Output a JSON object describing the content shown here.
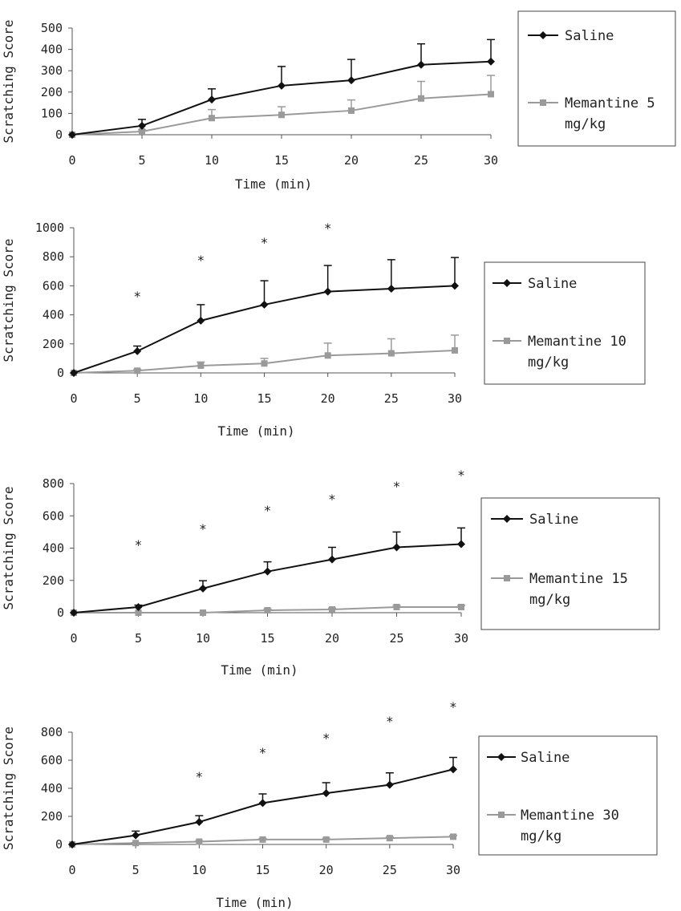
{
  "chart_data": [
    {
      "type": "line",
      "xlabel": "Time (min)",
      "ylabel": "Scratching Score",
      "x": [
        0,
        5,
        10,
        15,
        20,
        25,
        30
      ],
      "xticks": [
        "0",
        "5",
        "10",
        "15",
        "20",
        "25",
        "30"
      ],
      "ylim": [
        0,
        500
      ],
      "yticks": [
        "0",
        "100",
        "200",
        "300",
        "400",
        "500"
      ],
      "legend_position": "right",
      "series": [
        {
          "name": "Saline",
          "marker": "diamond",
          "color": "#111111",
          "values": [
            0,
            42,
            165,
            230,
            255,
            328,
            343
          ],
          "error": [
            0,
            30,
            50,
            90,
            98,
            98,
            103
          ]
        },
        {
          "name": "Memantine 5 mg/kg",
          "marker": "square",
          "color": "#9a9a9a",
          "values": [
            0,
            15,
            78,
            93,
            113,
            170,
            190
          ],
          "error": [
            0,
            8,
            40,
            38,
            50,
            80,
            88
          ]
        }
      ],
      "significance": [
        "",
        "",
        "",
        "",
        "",
        "",
        ""
      ]
    },
    {
      "type": "line",
      "xlabel": "Time (min)",
      "ylabel": "Scratching Score",
      "x": [
        0,
        5,
        10,
        15,
        20,
        25,
        30
      ],
      "xticks": [
        "0",
        "5",
        "10",
        "15",
        "20",
        "25",
        "30"
      ],
      "ylim": [
        0,
        1000
      ],
      "yticks": [
        "0",
        "200",
        "400",
        "600",
        "800",
        "1000"
      ],
      "legend_position": "right",
      "series": [
        {
          "name": "Saline",
          "marker": "diamond",
          "color": "#111111",
          "values": [
            0,
            150,
            360,
            470,
            560,
            580,
            600
          ],
          "error": [
            0,
            35,
            110,
            165,
            180,
            200,
            195
          ]
        },
        {
          "name": "Memantine 10 mg/kg",
          "marker": "square",
          "color": "#9a9a9a",
          "values": [
            0,
            15,
            50,
            65,
            120,
            135,
            155
          ],
          "error": [
            0,
            10,
            25,
            35,
            85,
            100,
            105
          ]
        }
      ],
      "significance": [
        "",
        "*",
        "*",
        "*",
        "*",
        "",
        ""
      ]
    },
    {
      "type": "line",
      "xlabel": "Time (min)",
      "ylabel": "Scratching Score",
      "x": [
        0,
        5,
        10,
        15,
        20,
        25,
        30
      ],
      "xticks": [
        "0",
        "5",
        "10",
        "15",
        "20",
        "25",
        "30"
      ],
      "ylim": [
        0,
        800
      ],
      "yticks": [
        "0",
        "200",
        "400",
        "600",
        "800"
      ],
      "legend_position": "right",
      "series": [
        {
          "name": "Saline",
          "marker": "diamond",
          "color": "#111111",
          "values": [
            0,
            35,
            150,
            255,
            330,
            405,
            425
          ],
          "error": [
            0,
            12,
            48,
            60,
            75,
            95,
            100
          ]
        },
        {
          "name": "Memantine 15 mg/kg",
          "marker": "square",
          "color": "#9a9a9a",
          "values": [
            0,
            0,
            0,
            15,
            20,
            35,
            35
          ],
          "error": [
            0,
            3,
            3,
            8,
            8,
            10,
            10
          ]
        }
      ],
      "significance": [
        "",
        "*",
        "*",
        "*",
        "*",
        "*",
        "*"
      ]
    },
    {
      "type": "line",
      "xlabel": "Time (min)",
      "ylabel": "Scratching Score",
      "x": [
        0,
        5,
        10,
        15,
        20,
        25,
        30
      ],
      "xticks": [
        "0",
        "5",
        "10",
        "15",
        "20",
        "25",
        "30"
      ],
      "ylim": [
        0,
        800
      ],
      "yticks": [
        "0",
        "200",
        "400",
        "600",
        "800"
      ],
      "legend_position": "right",
      "series": [
        {
          "name": "Saline",
          "marker": "diamond",
          "color": "#111111",
          "values": [
            0,
            65,
            160,
            295,
            365,
            425,
            535
          ],
          "error": [
            0,
            30,
            45,
            65,
            75,
            85,
            85
          ]
        },
        {
          "name": "Memantine 30 mg/kg",
          "marker": "square",
          "color": "#9a9a9a",
          "values": [
            0,
            10,
            20,
            35,
            35,
            45,
            55
          ],
          "error": [
            0,
            4,
            6,
            8,
            8,
            8,
            8
          ]
        }
      ],
      "significance": [
        "",
        "",
        "*",
        "*",
        "*",
        "*",
        "*"
      ]
    }
  ]
}
